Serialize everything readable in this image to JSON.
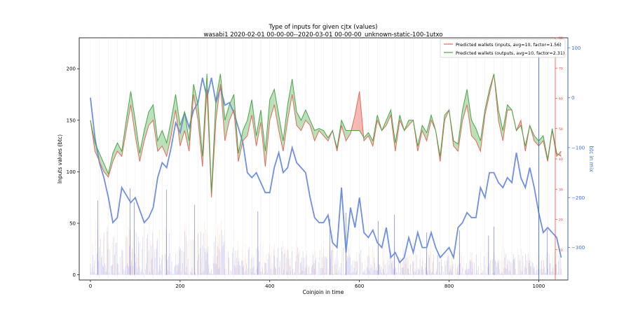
{
  "chart_data": {
    "type": "line",
    "title": "Type of inputs for given cjtx (values)",
    "subtitle": "wasabi1 2020-02-01 00-00-00--2020-03-01 00-00-00_unknown-static-100-1utxo",
    "xlabel": "Coinjoin in time",
    "ylabel_left": "Inputs values (btc)",
    "ylabel_right_outer": "btc in mix",
    "xlim": [
      -25,
      1065
    ],
    "ylim_left": [
      -5,
      230
    ],
    "ylim_right_inner": [
      0,
      80
    ],
    "ylim_right_outer": [
      -365,
      120
    ],
    "x_ticks": [
      0,
      200,
      400,
      600,
      800,
      1000
    ],
    "y_ticks_left": [
      0,
      50,
      100,
      150,
      200
    ],
    "y_ticks_right_inner": [
      10,
      20,
      30,
      40,
      50,
      60,
      70,
      80
    ],
    "y_ticks_right_outer": [
      100,
      0,
      -100,
      -200,
      -300
    ],
    "legend_position": "top-right",
    "legend": [
      {
        "label": "Predicted wallets (inputs, avg=10, factor=1.56)",
        "color": "#e8685a"
      },
      {
        "label": "Predicted wallets (outputs, avg=10, factor=2.31)",
        "color": "#4aa64a"
      }
    ],
    "colors": {
      "inputs": "#e8685a",
      "outputs": "#4aa64a",
      "fill_in_above": "#ee8a82",
      "fill_out_above": "#8fcc8a",
      "btc_in_mix": "#6f8fe0",
      "bars_blue": "#6f74e6",
      "bars_orange": "#f4b27a",
      "right_inner_axis": "#e23a2a",
      "right_outer_axis": "#3f6fd8"
    },
    "series": [
      {
        "name": "Predicted wallets (inputs, avg=10, factor=1.56)",
        "axis": "left",
        "x": [
          0,
          10,
          20,
          30,
          40,
          50,
          60,
          70,
          80,
          90,
          100,
          110,
          120,
          130,
          140,
          150,
          160,
          170,
          180,
          190,
          200,
          210,
          220,
          230,
          240,
          250,
          260,
          270,
          280,
          290,
          300,
          310,
          320,
          330,
          340,
          350,
          360,
          370,
          380,
          390,
          400,
          410,
          420,
          430,
          440,
          450,
          460,
          470,
          480,
          490,
          500,
          510,
          520,
          530,
          540,
          550,
          560,
          570,
          580,
          590,
          600,
          610,
          620,
          630,
          640,
          650,
          660,
          670,
          680,
          690,
          700,
          710,
          720,
          730,
          740,
          750,
          760,
          770,
          780,
          790,
          800,
          810,
          820,
          830,
          840,
          850,
          860,
          870,
          880,
          890,
          900,
          910,
          920,
          930,
          940,
          950,
          960,
          970,
          980,
          990,
          1000,
          1010,
          1020,
          1030,
          1040,
          1050
        ],
        "y": [
          150,
          120,
          110,
          100,
          95,
          110,
          120,
          115,
          140,
          165,
          135,
          110,
          130,
          145,
          150,
          120,
          125,
          115,
          135,
          160,
          125,
          140,
          120,
          175,
          150,
          105,
          180,
          75,
          150,
          185,
          130,
          150,
          160,
          110,
          130,
          135,
          155,
          125,
          148,
          105,
          150,
          165,
          140,
          120,
          150,
          175,
          145,
          140,
          150,
          145,
          130,
          140,
          135,
          130,
          140,
          120,
          145,
          130,
          137,
          155,
          178,
          130,
          135,
          125,
          150,
          140,
          145,
          155,
          120,
          150,
          140,
          145,
          150,
          120,
          140,
          130,
          150,
          140,
          110,
          150,
          160,
          125,
          120,
          150,
          165,
          135,
          130,
          120,
          155,
          175,
          195,
          150,
          130,
          160,
          160,
          140,
          150,
          120,
          145,
          130,
          125,
          130,
          110,
          140,
          115,
          120
        ]
      },
      {
        "name": "Predicted wallets (outputs, avg=10, factor=2.31)",
        "axis": "left",
        "x": [
          0,
          10,
          20,
          30,
          40,
          50,
          60,
          70,
          80,
          90,
          100,
          110,
          120,
          130,
          140,
          150,
          160,
          170,
          180,
          190,
          200,
          210,
          220,
          230,
          240,
          250,
          260,
          270,
          280,
          290,
          300,
          310,
          320,
          330,
          340,
          350,
          360,
          370,
          380,
          390,
          400,
          410,
          420,
          430,
          440,
          450,
          460,
          470,
          480,
          490,
          500,
          510,
          520,
          530,
          540,
          550,
          560,
          570,
          580,
          590,
          600,
          610,
          620,
          630,
          640,
          650,
          660,
          670,
          680,
          690,
          700,
          710,
          720,
          730,
          740,
          750,
          760,
          770,
          780,
          790,
          800,
          810,
          820,
          830,
          840,
          850,
          860,
          870,
          880,
          890,
          900,
          910,
          920,
          930,
          940,
          950,
          960,
          970,
          980,
          990,
          1000,
          1010,
          1020,
          1030,
          1040,
          1050
        ],
        "y": [
          150,
          128,
          118,
          108,
          98,
          118,
          128,
          120,
          150,
          178,
          150,
          118,
          140,
          158,
          165,
          130,
          140,
          128,
          150,
          175,
          145,
          158,
          130,
          185,
          165,
          115,
          195,
          80,
          170,
          195,
          150,
          165,
          175,
          118,
          140,
          150,
          170,
          135,
          160,
          120,
          170,
          180,
          155,
          130,
          165,
          190,
          158,
          150,
          160,
          150,
          140,
          142,
          140,
          133,
          140,
          123,
          150,
          140,
          140,
          140,
          140,
          133,
          138,
          130,
          155,
          140,
          150,
          160,
          128,
          155,
          140,
          150,
          150,
          125,
          145,
          138,
          155,
          140,
          115,
          155,
          160,
          130,
          127,
          160,
          180,
          150,
          142,
          130,
          160,
          180,
          195,
          160,
          140,
          165,
          160,
          140,
          145,
          125,
          145,
          135,
          130,
          135,
          112,
          142,
          118,
          115
        ]
      },
      {
        "name": "btc in mix",
        "axis": "right_outer",
        "x": [
          0,
          10,
          20,
          30,
          40,
          50,
          60,
          70,
          80,
          90,
          100,
          110,
          120,
          130,
          140,
          150,
          160,
          170,
          180,
          190,
          200,
          210,
          220,
          230,
          240,
          250,
          260,
          270,
          280,
          290,
          300,
          310,
          320,
          330,
          340,
          350,
          360,
          370,
          380,
          390,
          400,
          410,
          420,
          430,
          440,
          450,
          460,
          470,
          480,
          490,
          500,
          510,
          520,
          530,
          540,
          550,
          560,
          570,
          580,
          590,
          600,
          610,
          620,
          630,
          640,
          650,
          660,
          670,
          680,
          690,
          700,
          710,
          720,
          730,
          740,
          750,
          760,
          770,
          780,
          790,
          800,
          810,
          820,
          830,
          840,
          850,
          860,
          870,
          880,
          890,
          900,
          910,
          920,
          930,
          940,
          950,
          960,
          970,
          980,
          990,
          1000,
          1010,
          1020,
          1030,
          1040,
          1050
        ],
        "y": [
          0,
          -80,
          -130,
          -160,
          -200,
          -250,
          -240,
          -180,
          -195,
          -210,
          -200,
          -225,
          -250,
          -240,
          -220,
          -160,
          -130,
          -140,
          -100,
          -50,
          -70,
          -30,
          -60,
          -25,
          -10,
          40,
          0,
          40,
          -10,
          20,
          -15,
          -10,
          -30,
          -60,
          -90,
          -150,
          -160,
          -150,
          -170,
          -190,
          -190,
          -140,
          -110,
          -150,
          -140,
          -100,
          -130,
          -140,
          -150,
          -200,
          -240,
          -250,
          -250,
          -235,
          -290,
          -300,
          -180,
          -310,
          -220,
          -260,
          -200,
          -270,
          -280,
          -265,
          -290,
          -300,
          -260,
          -320,
          -310,
          -330,
          -320,
          -280,
          -310,
          -270,
          -300,
          -300,
          -270,
          -300,
          -320,
          -310,
          -300,
          -320,
          -260,
          -250,
          -230,
          -240,
          -240,
          -180,
          -200,
          -150,
          -150,
          -170,
          -180,
          -160,
          -170,
          -110,
          -160,
          -180,
          -140,
          -180,
          -230,
          -270,
          -260,
          -270,
          -280,
          -320
        ]
      }
    ]
  }
}
